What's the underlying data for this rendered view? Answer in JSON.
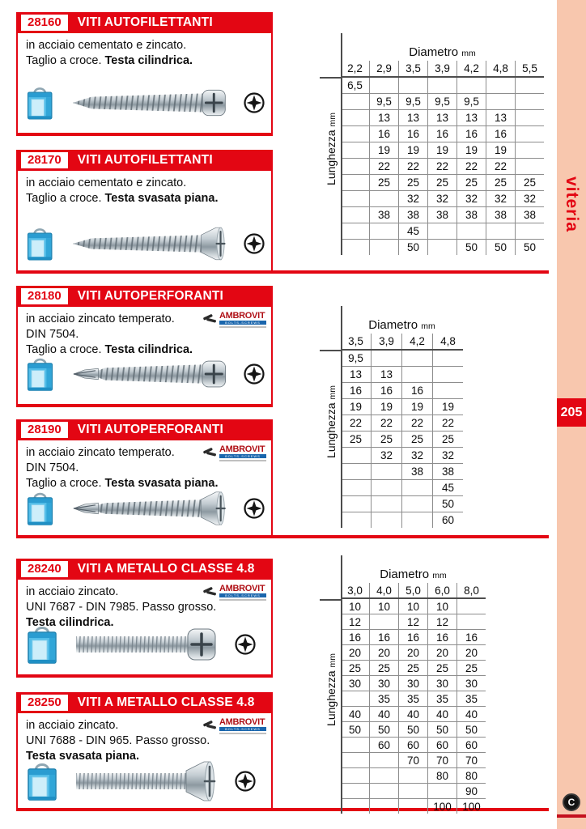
{
  "sidebar": {
    "category_label": "viteria",
    "page_number": "205",
    "publisher_letter": "C"
  },
  "labels": {
    "diameter": "Diametro",
    "length": "Lunghezza",
    "unit": "mm"
  },
  "brand": {
    "name": "AMBROVIT",
    "subtitle": "BOLTS-SCREWS"
  },
  "colors": {
    "accent_red": "#e30613",
    "sidebar_peach": "#f8c7ae",
    "grid_gray": "#8d8d8d",
    "brand_blue": "#1a66ad"
  },
  "icons": {
    "package": "blue-package-icon",
    "phillips": "phillips-drive-icon",
    "screws": [
      "pan-head-tapping-screw",
      "flat-head-tapping-screw",
      "pan-head-self-drilling-screw",
      "flat-head-self-drilling-screw",
      "pan-head-machine-screw",
      "flat-head-machine-screw"
    ]
  },
  "products": [
    {
      "code": "28160",
      "title": "VITI AUTOFILETTANTI",
      "has_brand": false,
      "desc": [
        [
          {
            "t": "in acciaio cementato e zincato.",
            "b": false
          }
        ],
        [
          {
            "t": "Taglio a croce. ",
            "b": false
          },
          {
            "t": "Testa cilindrica.",
            "b": true
          }
        ]
      ]
    },
    {
      "code": "28170",
      "title": "VITI AUTOFILETTANTI",
      "has_brand": false,
      "desc": [
        [
          {
            "t": "in acciaio cementato e zincato.",
            "b": false
          }
        ],
        [
          {
            "t": "Taglio a croce. ",
            "b": false
          },
          {
            "t": "Testa svasata piana.",
            "b": true
          }
        ]
      ]
    },
    {
      "code": "28180",
      "title": "VITI AUTOPERFORANTI",
      "has_brand": true,
      "desc": [
        [
          {
            "t": "in acciaio zincato temperato.",
            "b": false
          }
        ],
        [
          {
            "t": "DIN 7504.",
            "b": false
          }
        ],
        [
          {
            "t": "Taglio a croce. ",
            "b": false
          },
          {
            "t": "Testa cilindrica.",
            "b": true
          }
        ]
      ]
    },
    {
      "code": "28190",
      "title": "VITI AUTOPERFORANTI",
      "has_brand": true,
      "desc": [
        [
          {
            "t": "in acciaio zincato temperato.",
            "b": false
          }
        ],
        [
          {
            "t": "DIN 7504.",
            "b": false
          }
        ],
        [
          {
            "t": "Taglio a croce. ",
            "b": false
          },
          {
            "t": "Testa svasata piana.",
            "b": true
          }
        ]
      ]
    },
    {
      "code": "28240",
      "title": "VITI A METALLO CLASSE 4.8",
      "has_brand": true,
      "desc": [
        [
          {
            "t": "in acciaio zincato.",
            "b": false
          }
        ],
        [
          {
            "t": "UNI 7687 - DIN 7985. Passo grosso.",
            "b": false
          }
        ],
        [
          {
            "t": "Testa cilindrica.",
            "b": true
          }
        ]
      ]
    },
    {
      "code": "28250",
      "title": "VITI A METALLO CLASSE 4.8",
      "has_brand": true,
      "desc": [
        [
          {
            "t": "in acciaio zincato.",
            "b": false
          }
        ],
        [
          {
            "t": "UNI 7688 - DIN 965. Passo grosso.",
            "b": false
          }
        ],
        [
          {
            "t": "Testa svasata piana.",
            "b": true
          }
        ]
      ]
    }
  ],
  "tables": [
    {
      "columns": [
        "2,2",
        "2,9",
        "3,5",
        "3,9",
        "4,2",
        "4,8",
        "5,5"
      ],
      "rows": [
        [
          "6,5",
          "",
          "",
          "",
          "",
          "",
          ""
        ],
        [
          "",
          "9,5",
          "9,5",
          "9,5",
          "9,5",
          "",
          ""
        ],
        [
          "",
          "13",
          "13",
          "13",
          "13",
          "13",
          ""
        ],
        [
          "",
          "16",
          "16",
          "16",
          "16",
          "16",
          ""
        ],
        [
          "",
          "19",
          "19",
          "19",
          "19",
          "19",
          ""
        ],
        [
          "",
          "22",
          "22",
          "22",
          "22",
          "22",
          ""
        ],
        [
          "",
          "25",
          "25",
          "25",
          "25",
          "25",
          "25"
        ],
        [
          "",
          "",
          "32",
          "32",
          "32",
          "32",
          "32"
        ],
        [
          "",
          "38",
          "38",
          "38",
          "38",
          "38",
          "38"
        ],
        [
          "",
          "",
          "45",
          "",
          "",
          "",
          ""
        ],
        [
          "",
          "",
          "50",
          "",
          "50",
          "50",
          "50"
        ]
      ]
    },
    {
      "columns": [
        "3,5",
        "3,9",
        "4,2",
        "4,8"
      ],
      "rows": [
        [
          "9,5",
          "",
          "",
          ""
        ],
        [
          "13",
          "13",
          "",
          ""
        ],
        [
          "16",
          "16",
          "16",
          ""
        ],
        [
          "19",
          "19",
          "19",
          "19"
        ],
        [
          "22",
          "22",
          "22",
          "22"
        ],
        [
          "25",
          "25",
          "25",
          "25"
        ],
        [
          "",
          "32",
          "32",
          "32"
        ],
        [
          "",
          "",
          "38",
          "38"
        ],
        [
          "",
          "",
          "",
          "45"
        ],
        [
          "",
          "",
          "",
          "50"
        ],
        [
          "",
          "",
          "",
          "60"
        ]
      ]
    },
    {
      "columns": [
        "3,0",
        "4,0",
        "5,0",
        "6,0",
        "8,0"
      ],
      "rows": [
        [
          "10",
          "10",
          "10",
          "10",
          ""
        ],
        [
          "12",
          "",
          "12",
          "12",
          ""
        ],
        [
          "16",
          "16",
          "16",
          "16",
          "16"
        ],
        [
          "20",
          "20",
          "20",
          "20",
          "20"
        ],
        [
          "25",
          "25",
          "25",
          "25",
          "25"
        ],
        [
          "30",
          "30",
          "30",
          "30",
          "30"
        ],
        [
          "",
          "35",
          "35",
          "35",
          "35"
        ],
        [
          "40",
          "40",
          "40",
          "40",
          "40"
        ],
        [
          "50",
          "50",
          "50",
          "50",
          "50"
        ],
        [
          "",
          "60",
          "60",
          "60",
          "60"
        ],
        [
          "",
          "",
          "70",
          "70",
          "70"
        ],
        [
          "",
          "",
          "",
          "80",
          "80"
        ],
        [
          "",
          "",
          "",
          "",
          "90"
        ],
        [
          "",
          "",
          "",
          "100",
          "100"
        ]
      ]
    }
  ]
}
